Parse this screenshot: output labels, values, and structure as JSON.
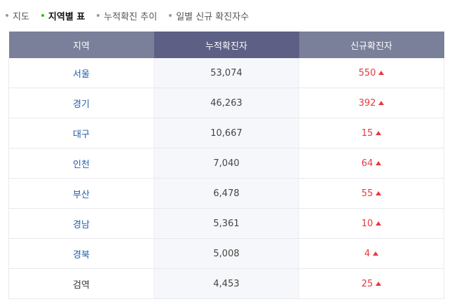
{
  "tabs": [
    {
      "label": "지도",
      "active": false
    },
    {
      "label": "지역별 표",
      "active": true
    },
    {
      "label": "누적확진 추이",
      "active": false
    },
    {
      "label": "일별 신규 확진자수",
      "active": false
    }
  ],
  "table": {
    "headers": [
      "지역",
      "누적확진자",
      "신규확진자"
    ],
    "rows": [
      {
        "region": "서울",
        "total": "53,074",
        "new": "550"
      },
      {
        "region": "경기",
        "total": "46,263",
        "new": "392"
      },
      {
        "region": "대구",
        "total": "10,667",
        "new": "15"
      },
      {
        "region": "인천",
        "total": "7,040",
        "new": "64"
      },
      {
        "region": "부산",
        "total": "6,478",
        "new": "55"
      },
      {
        "region": "경남",
        "total": "5,361",
        "new": "10"
      },
      {
        "region": "경북",
        "total": "5,008",
        "new": "4"
      },
      {
        "region": "검역",
        "total": "4,453",
        "new": "25"
      }
    ]
  },
  "colors": {
    "header_dark": "#5d6084",
    "header_light": "#7a7f9a",
    "accent_up": "#e8383d",
    "region_link": "#1f5ea8",
    "active_dot": "#1ec800"
  },
  "icons": {
    "trend": "up-triangle-icon"
  }
}
